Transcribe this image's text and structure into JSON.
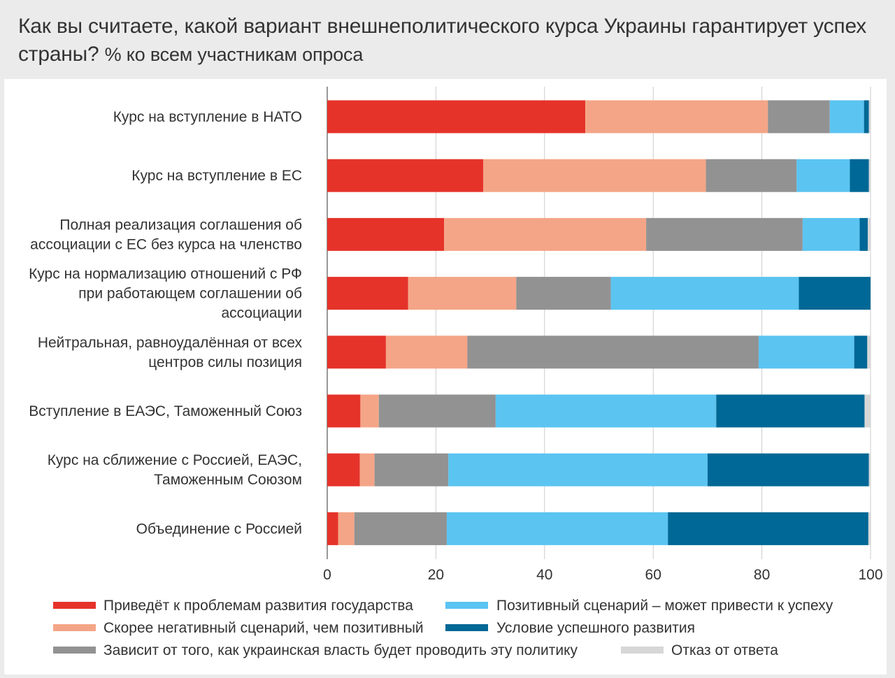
{
  "header": {
    "title": "Как вы считаете, какой вариант внешнеполитического курса Украины гарантирует успех страны?",
    "subtitle": "% ко всем участникам опроса"
  },
  "chart_data": {
    "type": "bar",
    "orientation": "horizontal",
    "stacked": true,
    "title": "Как вы считаете, какой вариант внешнеполитического курса Украины гарантирует успех страны?",
    "subtitle": "% ко всем участникам опроса",
    "xlim": [
      0,
      100
    ],
    "xticks": [
      0,
      20,
      40,
      60,
      80,
      100
    ],
    "grid": "vertical",
    "legend_position": "bottom",
    "categories": [
      [
        "Курс на вступление в НАТО"
      ],
      [
        "Курс на вступление в ЕС"
      ],
      [
        "Полная реализация соглашения об",
        "ассоциации с ЕС без курса на членство"
      ],
      [
        "Курс на нормализацию отношений с РФ",
        "при работающем соглашении об",
        "ассоциации"
      ],
      [
        "Нейтральная, равноудалённая от всех",
        "центров силы позиция"
      ],
      [
        "Вступление в ЕАЭС, Таможенный Союз"
      ],
      [
        "Курс на сближение с Россией, ЕАЭС,",
        "Таможенным Союзом"
      ],
      [
        "Объединение с Россией"
      ]
    ],
    "series": [
      {
        "name": "Приведёт к проблемам развития государства",
        "color": "#e5332a",
        "values": [
          47.5,
          28.7,
          21.5,
          14.9,
          10.8,
          6.1,
          6.0,
          2.0
        ]
      },
      {
        "name": "Скорее негативный сценарий, чем позитивный",
        "color": "#f4a587",
        "values": [
          33.6,
          41.0,
          37.2,
          19.9,
          15.0,
          3.4,
          2.7,
          3.0
        ]
      },
      {
        "name": "Зависит от того, как украинская власть будет проводить эту политику",
        "color": "#929292",
        "values": [
          11.4,
          16.7,
          28.8,
          17.4,
          53.6,
          21.5,
          13.6,
          17.0
        ]
      },
      {
        "name": "Позитивный сценарий – может привести к успеху",
        "color": "#5bc4f1",
        "values": [
          6.3,
          9.8,
          10.5,
          34.6,
          17.6,
          40.6,
          47.7,
          40.7
        ]
      },
      {
        "name": "Условие успешного развития",
        "color": "#006896",
        "values": [
          0.9,
          3.5,
          1.5,
          13.2,
          2.4,
          27.3,
          29.7,
          36.9
        ]
      },
      {
        "name": "Отказ от ответа",
        "color": "#d7d7d7",
        "values": [
          0.3,
          0.3,
          0.5,
          0.0,
          0.6,
          1.1,
          0.3,
          0.4
        ]
      }
    ],
    "legend_columns": [
      [
        0,
        1,
        2
      ],
      [
        3,
        4,
        5
      ]
    ]
  }
}
